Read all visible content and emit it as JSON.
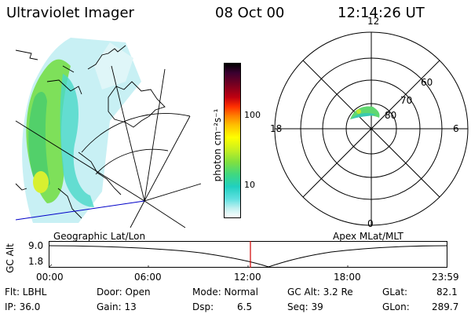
{
  "header": {
    "instrument": "Ultraviolet Imager",
    "date": "08 Oct 00",
    "time": "12:14:26 UT"
  },
  "left_panel": {
    "caption": "Geographic Lat/Lon"
  },
  "colorbar": {
    "unit_label": "photon cm⁻²s⁻¹",
    "ticks": [
      "100",
      "10"
    ],
    "colors": [
      "#000000",
      "#3a0030",
      "#7a0020",
      "#c00010",
      "#ff3000",
      "#ff8000",
      "#ffc000",
      "#ffff00",
      "#c8f020",
      "#80e040",
      "#40d880",
      "#20d0c0",
      "#60e0e0",
      "#c0f0f0",
      "#ffffff"
    ]
  },
  "right_panel": {
    "caption": "Apex MLat/MLT",
    "mlt_labels": {
      "top": "12",
      "left": "18",
      "right": "6",
      "bottom": "0"
    },
    "lat_labels": [
      "60",
      "70",
      "80"
    ]
  },
  "altitude_plot": {
    "ylabel": "GC Alt",
    "yticks": [
      "9.0",
      "1.8"
    ],
    "xticks": [
      "00:00",
      "06:00",
      "12:00",
      "18:00",
      "23:59"
    ],
    "marker_color": "#d00000"
  },
  "info": {
    "flt": "Flt: LBHL",
    "ip": "IP: 36.0",
    "door": "Door: Open",
    "gain": "Gain: 13",
    "mode": "Mode: Normal",
    "dsp_label": "Dsp:",
    "dsp_value": "6.5",
    "gc_alt": "GC Alt: 3.2 Re",
    "seq": "Seq: 39",
    "glat": "GLat:",
    "glat_value": "82.1",
    "glon": "GLon:",
    "glon_value": "289.7"
  }
}
